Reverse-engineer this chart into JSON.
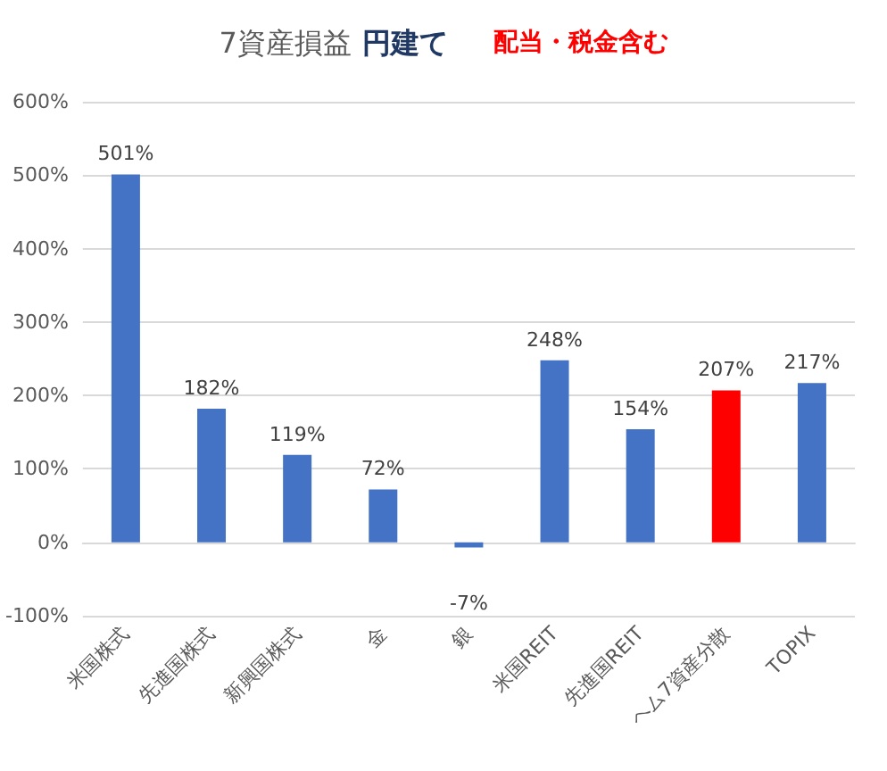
{
  "chart_data": {
    "type": "bar",
    "title": "7資産損益 円建て",
    "subtitle": "配当・税金含む",
    "categories": [
      "米国株式",
      "先進国株式",
      "新興国株式",
      "金",
      "銀",
      "米国REIT",
      "先進国REIT",
      "ヘム7資産分散",
      "TOPIX"
    ],
    "values": [
      501,
      182,
      119,
      72,
      -7,
      248,
      154,
      207,
      217
    ],
    "value_labels": [
      "501%",
      "182%",
      "119%",
      "72%",
      "-7%",
      "248%",
      "154%",
      "207%",
      "217%"
    ],
    "colors": [
      "#4472c4",
      "#4472c4",
      "#4472c4",
      "#4472c4",
      "#4472c4",
      "#4472c4",
      "#4472c4",
      "#ff0000",
      "#4472c4"
    ],
    "ylim": [
      -100,
      600
    ],
    "yticks": [
      {
        "value": -100,
        "label": "-100%"
      },
      {
        "value": 0,
        "label": "0%"
      },
      {
        "value": 100,
        "label": "100%"
      },
      {
        "value": 200,
        "label": "200%"
      },
      {
        "value": 300,
        "label": "300%"
      },
      {
        "value": 400,
        "label": "400%"
      },
      {
        "value": 500,
        "label": "500%"
      },
      {
        "value": 600,
        "label": "600%"
      }
    ],
    "grid": "y"
  }
}
